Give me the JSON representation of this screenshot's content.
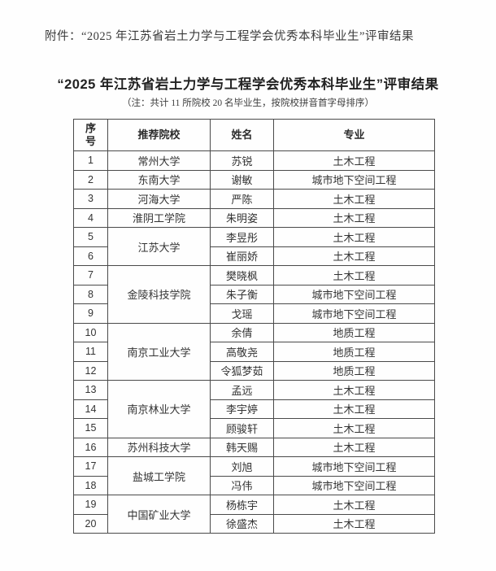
{
  "page": {
    "attachment_line": "附件：“2025 年江苏省岩土力学与工程学会优秀本科毕业生”评审结果",
    "title": "“2025 年江苏省岩土力学与工程学会优秀本科毕业生”评审结果",
    "note": "（注：共计 11 所院校 20 名毕业生，按院校拼音首字母排序）"
  },
  "table": {
    "headers": [
      "序号",
      "推荐院校",
      "姓名",
      "专业"
    ],
    "rows": [
      {
        "no": "1",
        "college": "常州大学",
        "college_rowspan": 1,
        "name": "苏锐",
        "major": "土木工程"
      },
      {
        "no": "2",
        "college": "东南大学",
        "college_rowspan": 1,
        "name": "谢敏",
        "major": "城市地下空间工程"
      },
      {
        "no": "3",
        "college": "河海大学",
        "college_rowspan": 1,
        "name": "严陈",
        "major": "土木工程"
      },
      {
        "no": "4",
        "college": "淮阴工学院",
        "college_rowspan": 1,
        "name": "朱明姿",
        "major": "土木工程"
      },
      {
        "no": "5",
        "college": "江苏大学",
        "college_rowspan": 2,
        "name": "李昱彤",
        "major": "土木工程"
      },
      {
        "no": "6",
        "name": "崔丽娇",
        "major": "土木工程"
      },
      {
        "no": "7",
        "college": "金陵科技学院",
        "college_rowspan": 3,
        "name": "樊晓枫",
        "major": "土木工程"
      },
      {
        "no": "8",
        "name": "朱子衡",
        "major": "城市地下空间工程"
      },
      {
        "no": "9",
        "name": "戈瑶",
        "major": "城市地下空间工程"
      },
      {
        "no": "10",
        "college": "南京工业大学",
        "college_rowspan": 3,
        "name": "余倩",
        "major": "地质工程"
      },
      {
        "no": "11",
        "name": "高敬尧",
        "major": "地质工程"
      },
      {
        "no": "12",
        "name": "令狐梦茹",
        "major": "地质工程"
      },
      {
        "no": "13",
        "college": "南京林业大学",
        "college_rowspan": 3,
        "name": "孟远",
        "major": "土木工程"
      },
      {
        "no": "14",
        "name": "李宇婷",
        "major": "土木工程"
      },
      {
        "no": "15",
        "name": "顾骏轩",
        "major": "土木工程"
      },
      {
        "no": "16",
        "college": "苏州科技大学",
        "college_rowspan": 1,
        "name": "韩天赐",
        "major": "土木工程"
      },
      {
        "no": "17",
        "college": "盐城工学院",
        "college_rowspan": 2,
        "name": "刘旭",
        "major": "城市地下空间工程"
      },
      {
        "no": "18",
        "name": "冯伟",
        "major": "城市地下空间工程"
      },
      {
        "no": "19",
        "college": "中国矿业大学",
        "college_rowspan": 2,
        "name": "杨栋宇",
        "major": "土木工程"
      },
      {
        "no": "20",
        "name": "徐盛杰",
        "major": "土木工程"
      }
    ]
  }
}
